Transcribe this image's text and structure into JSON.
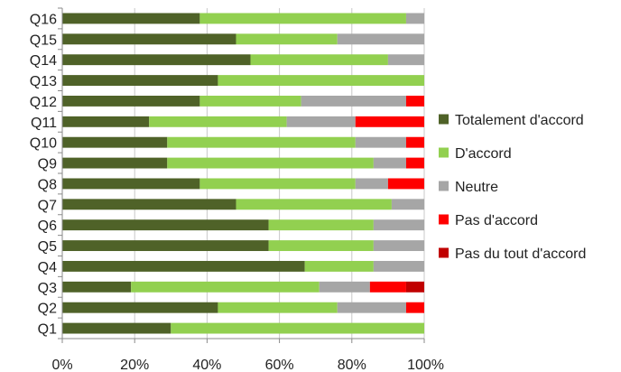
{
  "chart_data": {
    "type": "bar",
    "orientation": "horizontal",
    "stacked": "percent",
    "categories": [
      "Q16",
      "Q15",
      "Q14",
      "Q13",
      "Q12",
      "Q11",
      "Q10",
      "Q9",
      "Q8",
      "Q7",
      "Q6",
      "Q5",
      "Q4",
      "Q3",
      "Q2",
      "Q1"
    ],
    "series": [
      {
        "name": "Totalement d'accord",
        "color": "#4f6228",
        "values": [
          38,
          48,
          52,
          43,
          38,
          24,
          29,
          29,
          38,
          48,
          57,
          57,
          67,
          19,
          43,
          30
        ]
      },
      {
        "name": "D'accord",
        "color": "#92d050",
        "values": [
          57,
          28,
          38,
          57,
          28,
          38,
          52,
          57,
          43,
          43,
          29,
          29,
          19,
          52,
          33,
          70
        ]
      },
      {
        "name": "Neutre",
        "color": "#a6a6a6",
        "values": [
          5,
          24,
          10,
          0,
          29,
          19,
          14,
          9,
          9,
          9,
          14,
          14,
          14,
          14,
          19,
          0
        ]
      },
      {
        "name": "Pas d'accord",
        "color": "#ff0000",
        "values": [
          0,
          0,
          0,
          0,
          5,
          19,
          5,
          5,
          10,
          0,
          0,
          0,
          0,
          10,
          5,
          0
        ]
      },
      {
        "name": "Pas du tout d'accord",
        "color": "#c00000",
        "values": [
          0,
          0,
          0,
          0,
          0,
          0,
          0,
          0,
          0,
          0,
          0,
          0,
          0,
          5,
          0,
          0
        ]
      }
    ],
    "xlim": [
      0,
      100
    ],
    "xticks": [
      "0%",
      "20%",
      "40%",
      "60%",
      "80%",
      "100%"
    ],
    "xtick_values": [
      0,
      20,
      40,
      60,
      80,
      100
    ],
    "grid": true,
    "legend_position": "right",
    "title": "",
    "xlabel": "",
    "ylabel": ""
  }
}
